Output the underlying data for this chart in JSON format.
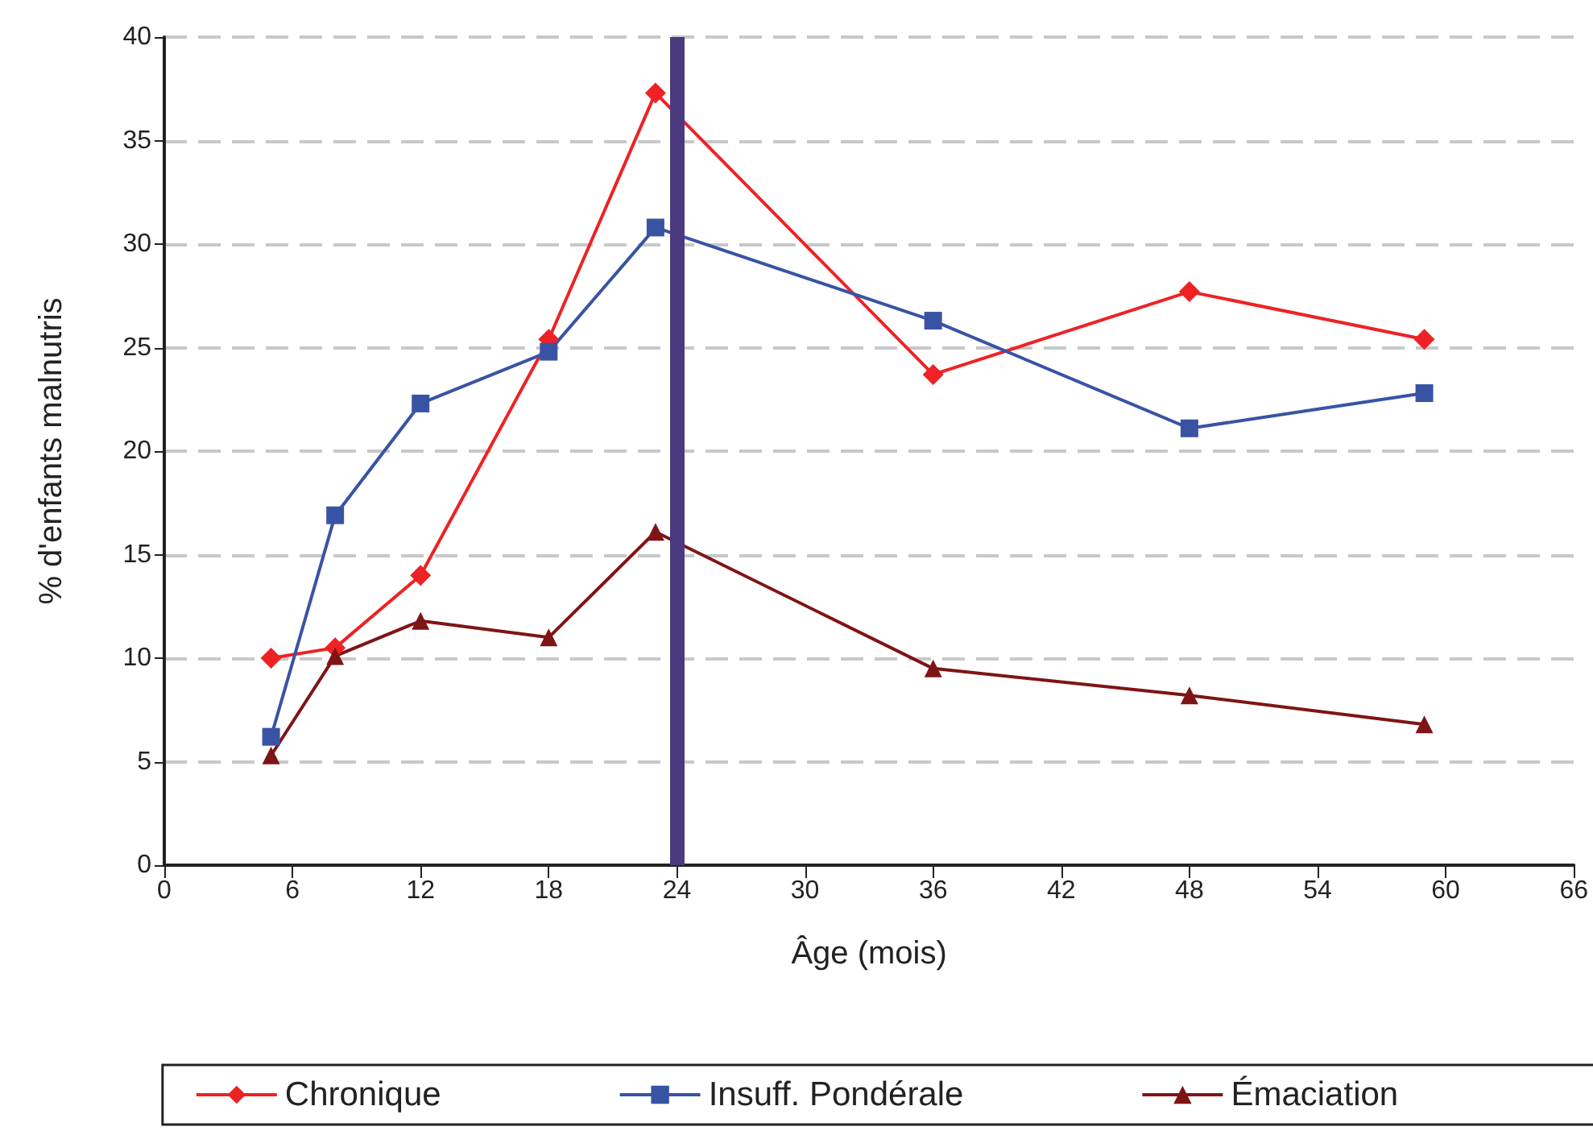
{
  "chart_data": {
    "type": "line",
    "xlabel": "Âge (mois)",
    "ylabel": "% d'enfants malnutris",
    "x": [
      5,
      8,
      12,
      18,
      23,
      36,
      48,
      59
    ],
    "series": [
      {
        "name": "Chronique",
        "color": "#ee2224",
        "marker": "diamond",
        "values": [
          10.0,
          10.5,
          14.0,
          25.4,
          37.3,
          23.7,
          27.7,
          25.4
        ]
      },
      {
        "name": "Insuff. Pondérale",
        "color": "#3953a4",
        "marker": "square",
        "values": [
          6.2,
          16.9,
          22.3,
          24.8,
          30.8,
          26.3,
          21.1,
          22.8
        ]
      },
      {
        "name": "Émaciation",
        "color": "#7f1416",
        "marker": "triangle",
        "values": [
          5.3,
          10.1,
          11.8,
          11.0,
          16.1,
          9.5,
          8.2,
          6.8
        ]
      }
    ],
    "xlim": [
      0,
      66
    ],
    "xticks": [
      0,
      6,
      12,
      18,
      24,
      30,
      36,
      42,
      48,
      54,
      60,
      66
    ],
    "ylim": [
      0,
      40
    ],
    "yticks": [
      0,
      5,
      10,
      15,
      20,
      25,
      30,
      35,
      40
    ],
    "ref_lines": [
      {
        "axis": "x",
        "value": 24,
        "color": "#4b3a80"
      }
    ],
    "grid": "y",
    "legend": "bottom",
    "line_style": "solid"
  }
}
